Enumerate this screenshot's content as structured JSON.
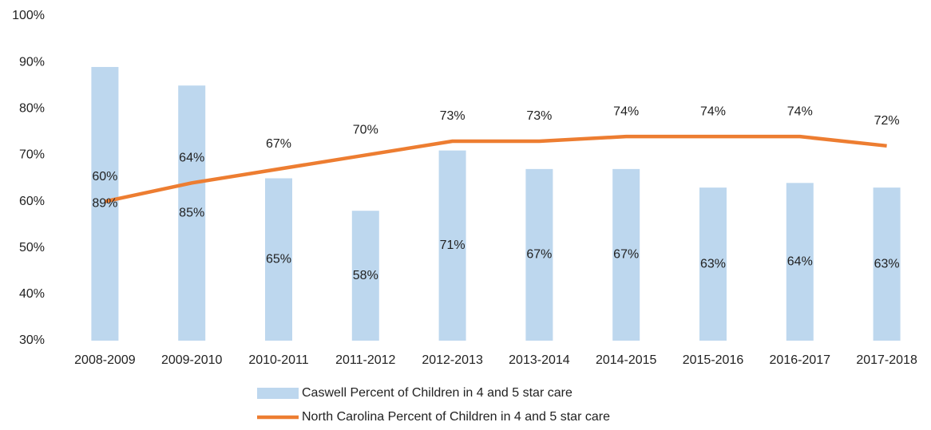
{
  "chart_data": {
    "type": "combo",
    "categories": [
      "2008-2009",
      "2009-2010",
      "2010-2011",
      "2011-2012",
      "2012-2013",
      "2013-2014",
      "2014-2015",
      "2015-2016",
      "2016-2017",
      "2017-2018"
    ],
    "series": [
      {
        "name": "Caswell Percent of Children in 4 and 5 star care",
        "type": "bar",
        "color": "#bdd7ee",
        "values": [
          89,
          85,
          65,
          58,
          71,
          67,
          67,
          63,
          64,
          63
        ],
        "value_labels": [
          "89%",
          "85%",
          "65%",
          "58%",
          "71%",
          "67%",
          "67%",
          "63%",
          "64%",
          "63%"
        ]
      },
      {
        "name": "North Carolina Percent of Children in 4 and 5 star care",
        "type": "line",
        "color": "#ed7d31",
        "values": [
          60,
          64,
          67,
          70,
          73,
          73,
          74,
          74,
          74,
          72
        ],
        "value_labels": [
          "60%",
          "64%",
          "67%",
          "70%",
          "73%",
          "73%",
          "74%",
          "74%",
          "74%",
          "72%"
        ]
      }
    ],
    "ylim": [
      30,
      100
    ],
    "yticks": [
      {
        "value": 30,
        "label": "30%"
      },
      {
        "value": 40,
        "label": "40%"
      },
      {
        "value": 50,
        "label": "50%"
      },
      {
        "value": 60,
        "label": "60%"
      },
      {
        "value": 70,
        "label": "70%"
      },
      {
        "value": 80,
        "label": "80%"
      },
      {
        "value": 90,
        "label": "90%"
      },
      {
        "value": 100,
        "label": "100%"
      }
    ],
    "grid": false,
    "legend": "bottom"
  }
}
